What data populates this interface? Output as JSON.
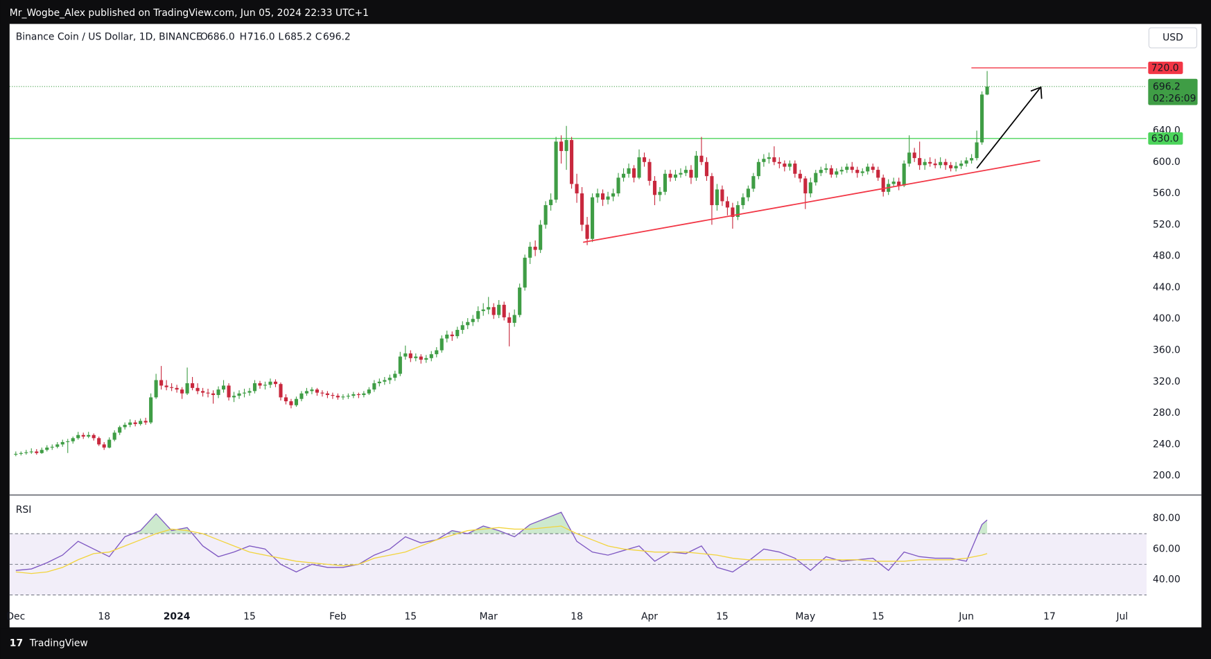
{
  "header": {
    "published": "Mr_Wogbe_Alex published on TradingView.com, Jun 05, 2024 22:33 UTC+1"
  },
  "chart_data": [
    {
      "type": "candlestick",
      "symbol": "Binance Coin / US Dollar, 1D, BINANCE",
      "ohlc": [
        {
          "key": "O",
          "value": "686.0"
        },
        {
          "key": "H",
          "value": "716.0"
        },
        {
          "key": "L",
          "value": "685.2"
        },
        {
          "key": "C",
          "value": "696.2"
        }
      ],
      "currency": "USD",
      "up_color": "#3f9d45",
      "down_color": "#c8283d",
      "open": [
        227,
        228,
        229,
        230,
        231,
        229,
        233,
        236,
        237,
        240,
        243,
        244,
        248,
        252,
        250,
        252,
        248,
        240,
        236,
        246,
        255,
        262,
        265,
        268,
        266,
        270,
        268,
        300,
        322,
        315,
        313,
        312,
        310,
        305,
        318,
        312,
        308,
        306,
        305,
        303,
        310,
        315,
        300,
        302,
        305,
        306,
        308,
        318,
        315,
        316,
        320,
        317,
        300,
        295,
        290,
        298,
        305,
        308,
        310,
        306,
        305,
        303,
        302,
        300,
        301,
        302,
        304,
        303,
        305,
        310,
        318,
        320,
        322,
        325,
        330,
        352,
        356,
        350,
        352,
        348,
        350,
        355,
        360,
        375,
        380,
        378,
        386,
        392,
        396,
        400,
        410,
        412,
        415,
        405,
        418,
        402,
        395,
        405,
        440,
        478,
        492,
        488,
        520,
        545,
        552,
        626,
        614,
        628,
        572,
        560,
        520,
        502,
        555,
        560,
        552,
        556,
        560,
        580,
        585,
        592,
        580,
        606,
        600,
        576,
        558,
        562,
        585,
        580,
        584,
        586,
        590,
        580,
        608,
        600,
        582,
        545,
        565,
        550,
        542,
        530,
        545,
        555,
        566,
        582,
        600,
        604,
        606,
        600,
        598,
        594,
        598,
        585,
        579,
        560,
        574,
        586,
        590,
        592,
        584,
        588,
        590,
        594,
        590,
        586,
        588,
        594,
        590,
        580,
        562,
        572,
        575,
        570,
        598,
        612,
        605,
        596,
        600,
        598,
        596,
        600,
        596,
        592,
        595,
        598,
        602,
        605,
        625,
        686.0
      ],
      "high": [
        231,
        231,
        233,
        235,
        234,
        236,
        239,
        240,
        243,
        246,
        247,
        250,
        256,
        255,
        256,
        254,
        250,
        243,
        249,
        258,
        264,
        268,
        272,
        271,
        273,
        274,
        305,
        330,
        340,
        322,
        318,
        316,
        313,
        338,
        326,
        318,
        312,
        311,
        309,
        314,
        322,
        318,
        307,
        309,
        311,
        312,
        322,
        321,
        320,
        324,
        323,
        319,
        304,
        298,
        301,
        308,
        312,
        313,
        312,
        309,
        308,
        306,
        305,
        304,
        305,
        307,
        306,
        308,
        313,
        322,
        324,
        326,
        329,
        334,
        358,
        366,
        360,
        356,
        355,
        354,
        359,
        364,
        379,
        385,
        384,
        390,
        397,
        401,
        405,
        416,
        420,
        428,
        420,
        424,
        422,
        408,
        412,
        445,
        482,
        498,
        500,
        526,
        550,
        560,
        632,
        634,
        646,
        632,
        585,
        568,
        530,
        560,
        566,
        565,
        562,
        566,
        586,
        592,
        598,
        596,
        616,
        612,
        604,
        582,
        568,
        590,
        590,
        590,
        592,
        595,
        596,
        614,
        632,
        606,
        586,
        572,
        570,
        556,
        548,
        550,
        560,
        570,
        586,
        604,
        610,
        612,
        620,
        606,
        602,
        602,
        602,
        590,
        582,
        580,
        590,
        594,
        598,
        596,
        592,
        594,
        598,
        600,
        594,
        592,
        598,
        598,
        594,
        584,
        578,
        580,
        580,
        602,
        634,
        618,
        626,
        604,
        606,
        604,
        606,
        604,
        600,
        600,
        602,
        606,
        610,
        640,
        690,
        716.0
      ],
      "low": [
        225,
        226,
        227,
        228,
        227,
        228,
        231,
        233,
        235,
        237,
        229,
        241,
        246,
        247,
        248,
        245,
        238,
        233,
        235,
        244,
        252,
        259,
        262,
        263,
        264,
        265,
        266,
        298,
        310,
        309,
        308,
        306,
        298,
        303,
        309,
        304,
        301,
        300,
        292,
        299,
        306,
        296,
        294,
        298,
        300,
        302,
        305,
        311,
        310,
        312,
        313,
        296,
        291,
        286,
        288,
        295,
        302,
        304,
        302,
        301,
        299,
        298,
        297,
        297,
        298,
        299,
        299,
        300,
        303,
        307,
        314,
        316,
        317,
        321,
        327,
        348,
        345,
        346,
        343,
        344,
        346,
        351,
        357,
        370,
        372,
        375,
        381,
        387,
        391,
        396,
        404,
        406,
        400,
        401,
        398,
        365,
        390,
        402,
        436,
        470,
        480,
        484,
        515,
        538,
        548,
        598,
        590,
        566,
        548,
        512,
        494,
        498,
        548,
        544,
        546,
        550,
        556,
        575,
        580,
        574,
        578,
        594,
        570,
        545,
        550,
        558,
        575,
        576,
        580,
        582,
        572,
        576,
        596,
        576,
        520,
        538,
        544,
        532,
        515,
        526,
        540,
        550,
        562,
        578,
        594,
        598,
        596,
        592,
        588,
        589,
        580,
        574,
        540,
        555,
        570,
        582,
        586,
        580,
        580,
        584,
        586,
        586,
        580,
        582,
        584,
        586,
        576,
        556,
        558,
        568,
        564,
        568,
        594,
        600,
        590,
        590,
        594,
        592,
        592,
        590,
        588,
        588,
        591,
        594,
        598,
        602,
        622,
        685.2
      ],
      "close": [
        228,
        229,
        230,
        231,
        229,
        233,
        236,
        237,
        240,
        243,
        244,
        248,
        252,
        250,
        252,
        248,
        240,
        236,
        246,
        255,
        262,
        265,
        268,
        266,
        270,
        268,
        300,
        322,
        315,
        313,
        312,
        310,
        305,
        318,
        312,
        308,
        306,
        305,
        303,
        310,
        315,
        300,
        302,
        305,
        306,
        308,
        318,
        315,
        316,
        320,
        317,
        300,
        295,
        290,
        298,
        305,
        308,
        310,
        306,
        305,
        303,
        302,
        300,
        301,
        302,
        304,
        303,
        305,
        310,
        318,
        320,
        322,
        325,
        330,
        352,
        356,
        350,
        352,
        348,
        350,
        355,
        360,
        375,
        380,
        378,
        386,
        392,
        396,
        400,
        410,
        412,
        415,
        405,
        418,
        402,
        395,
        405,
        440,
        478,
        492,
        488,
        520,
        545,
        552,
        626,
        614,
        628,
        572,
        560,
        520,
        502,
        555,
        560,
        552,
        556,
        560,
        580,
        585,
        592,
        580,
        606,
        600,
        576,
        558,
        562,
        585,
        580,
        584,
        586,
        590,
        580,
        608,
        600,
        582,
        545,
        565,
        550,
        542,
        530,
        545,
        555,
        566,
        582,
        600,
        604,
        606,
        600,
        598,
        594,
        598,
        585,
        579,
        560,
        574,
        586,
        590,
        592,
        584,
        588,
        590,
        594,
        590,
        586,
        588,
        594,
        590,
        580,
        562,
        572,
        575,
        570,
        598,
        612,
        605,
        596,
        600,
        598,
        596,
        600,
        596,
        592,
        595,
        598,
        602,
        605,
        625,
        686,
        696.2
      ],
      "xlim": [
        -1.2,
        217.7
      ],
      "xticks": [
        {
          "value": 0,
          "label": "Dec"
        },
        {
          "value": 17,
          "label": "18"
        },
        {
          "value": 31,
          "label": "2024",
          "bold": true
        },
        {
          "value": 45,
          "label": "15"
        },
        {
          "value": 62,
          "label": "Feb"
        },
        {
          "value": 76,
          "label": "15"
        },
        {
          "value": 91,
          "label": "Mar"
        },
        {
          "value": 108,
          "label": "18"
        },
        {
          "value": 122,
          "label": "Apr"
        },
        {
          "value": 136,
          "label": "15"
        },
        {
          "value": 152,
          "label": "May"
        },
        {
          "value": 166,
          "label": "15"
        },
        {
          "value": 183,
          "label": "Jun"
        },
        {
          "value": 199,
          "label": "17"
        },
        {
          "value": 213,
          "label": "Jul"
        }
      ],
      "ylim": [
        176,
        776
      ],
      "yticks": [
        {
          "value": 200,
          "label": "200.0"
        },
        {
          "value": 240,
          "label": "240.0"
        },
        {
          "value": 280,
          "label": "280.0"
        },
        {
          "value": 320,
          "label": "320.0"
        },
        {
          "value": 360,
          "label": "360.0"
        },
        {
          "value": 400,
          "label": "400.0"
        },
        {
          "value": 440,
          "label": "440.0"
        },
        {
          "value": 480,
          "label": "480.0"
        },
        {
          "value": 520,
          "label": "520.0"
        },
        {
          "value": 560,
          "label": "560.0"
        },
        {
          "value": 600,
          "label": "600.0"
        },
        {
          "value": 640,
          "label": "640.0"
        }
      ],
      "levels": [
        {
          "value": 720,
          "label": "720.0",
          "color": "#f23645"
        },
        {
          "value": 630,
          "label": "630.0",
          "color": "#4cd45b"
        }
      ],
      "last_price": {
        "value": 696.2,
        "countdown": "02:26:09",
        "color": "#3f9d45"
      }
    },
    {
      "type": "line",
      "title": "RSI",
      "x": [
        0,
        3,
        6,
        9,
        12,
        15,
        18,
        21,
        24,
        27,
        30,
        33,
        36,
        39,
        42,
        45,
        48,
        51,
        54,
        57,
        60,
        63,
        66,
        69,
        72,
        75,
        78,
        81,
        84,
        87,
        90,
        93,
        96,
        99,
        102,
        105,
        108,
        111,
        114,
        117,
        120,
        123,
        126,
        129,
        132,
        135,
        138,
        141,
        144,
        147,
        150,
        153,
        156,
        159,
        162,
        165,
        168,
        171,
        174,
        177,
        180,
        183,
        186,
        187
      ],
      "series": [
        {
          "color": "#7e57c2",
          "values": [
            46,
            47,
            51,
            56,
            65,
            60,
            55,
            68,
            72,
            83,
            72,
            74,
            62,
            55,
            58,
            62,
            60,
            50,
            45,
            50,
            48,
            48,
            50,
            56,
            60,
            68,
            64,
            66,
            72,
            70,
            75,
            72,
            68,
            76,
            80,
            84,
            65,
            58,
            56,
            59,
            62,
            52,
            58,
            57,
            62,
            48,
            45,
            52,
            60,
            58,
            54,
            46,
            55,
            52,
            53,
            54,
            46,
            58,
            55,
            54,
            54,
            52,
            76,
            79
          ]
        },
        {
          "color": "#f2d43d",
          "values": [
            45,
            44,
            45,
            48,
            53,
            57,
            58,
            62,
            66,
            70,
            73,
            72,
            70,
            66,
            62,
            58,
            56,
            54,
            52,
            51,
            50,
            49,
            50,
            54,
            56,
            58,
            62,
            66,
            69,
            72,
            73,
            74,
            73,
            73,
            74,
            75,
            70,
            66,
            62,
            60,
            59,
            58,
            58,
            58,
            57,
            56,
            54,
            53,
            53,
            53,
            53,
            53,
            53,
            53,
            53,
            52,
            52,
            52,
            53,
            53,
            53,
            54,
            56,
            57
          ]
        }
      ],
      "ylim": [
        30,
        95
      ],
      "yticks": [
        {
          "value": 40,
          "label": "40.00"
        },
        {
          "value": 60,
          "label": "60.00"
        },
        {
          "value": 80,
          "label": "80.00"
        }
      ],
      "levels": [
        30,
        50,
        70
      ]
    }
  ],
  "footer": {
    "brand": "TradingView"
  }
}
